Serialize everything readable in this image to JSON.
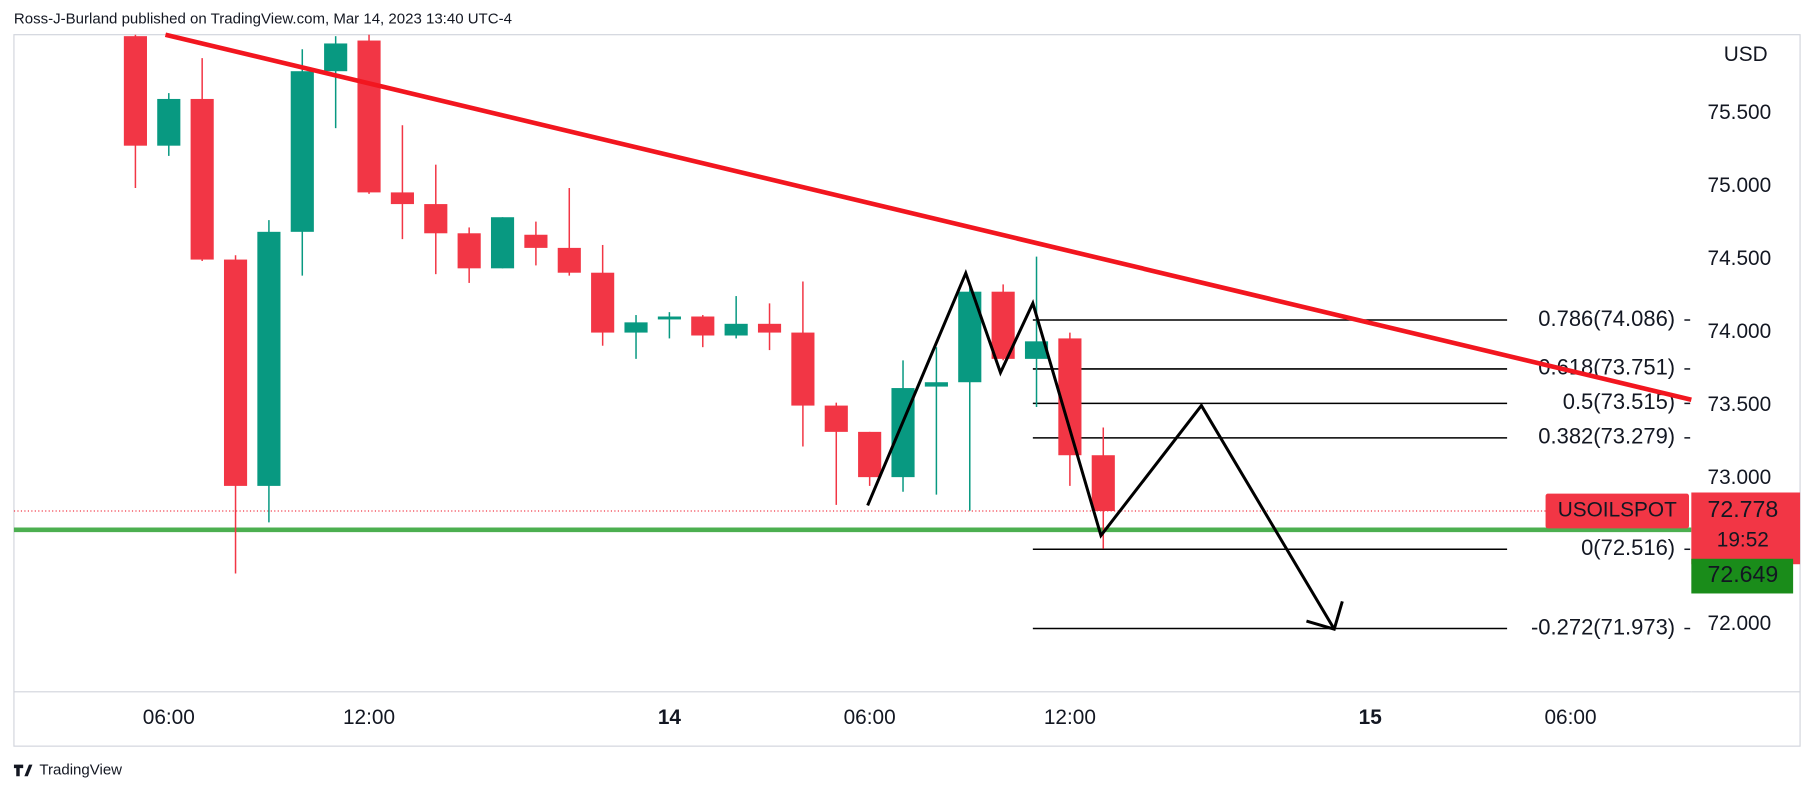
{
  "header": {
    "text": "Ross-J-Burland published on TradingView.com, Mar 14, 2023 13:40 UTC-4"
  },
  "footer": {
    "brand": "TradingView"
  },
  "chart_data": {
    "type": "candlestick",
    "symbol": "USOILSPOT",
    "currency": "USD",
    "up_color": "#089981",
    "down_color": "#f23645",
    "x": [
      0,
      1,
      2,
      3,
      4,
      5,
      6,
      7,
      8,
      9,
      10,
      11,
      12,
      13,
      14,
      15,
      16,
      17,
      18,
      19,
      20,
      21,
      22,
      23,
      24,
      25,
      26,
      27,
      28,
      29
    ],
    "open": [
      76.03,
      75.28,
      75.6,
      74.5,
      72.95,
      74.69,
      75.79,
      76.0,
      74.96,
      74.88,
      74.68,
      74.44,
      74.67,
      74.58,
      74.41,
      74.0,
      74.09,
      74.11,
      73.98,
      74.06,
      74.0,
      73.5,
      73.32,
      73.01,
      73.63,
      73.66,
      74.28,
      73.82,
      73.96,
      73.16
    ],
    "high": [
      76.05,
      75.64,
      75.88,
      74.53,
      74.77,
      75.94,
      76.03,
      76.04,
      75.42,
      75.15,
      74.72,
      74.79,
      74.76,
      74.99,
      74.6,
      74.12,
      74.14,
      74.12,
      74.25,
      74.2,
      74.35,
      73.52,
      73.32,
      73.81,
      73.9,
      74.34,
      74.33,
      74.52,
      74.0,
      73.35
    ],
    "low": [
      74.99,
      75.21,
      74.49,
      72.35,
      72.7,
      74.39,
      75.4,
      74.95,
      74.64,
      74.4,
      74.34,
      74.44,
      74.46,
      74.39,
      73.91,
      73.82,
      73.96,
      73.9,
      73.96,
      73.88,
      73.22,
      72.82,
      72.95,
      72.91,
      72.89,
      72.78,
      73.81,
      73.49,
      72.95,
      72.52
    ],
    "close": [
      75.28,
      75.6,
      74.5,
      72.95,
      74.69,
      75.79,
      75.98,
      74.96,
      74.88,
      74.68,
      74.44,
      74.79,
      74.58,
      74.41,
      74.0,
      74.07,
      74.11,
      73.98,
      74.06,
      74.0,
      73.5,
      73.32,
      73.01,
      73.62,
      73.66,
      74.28,
      73.82,
      73.94,
      73.16,
      72.778
    ],
    "xlim": [
      -3.64,
      46.62
    ],
    "ylim": [
      71.54,
      76.04
    ],
    "xticks": [
      {
        "value": 1,
        "label": "06:00"
      },
      {
        "value": 7,
        "label": "12:00"
      },
      {
        "value": 16,
        "label": "14"
      },
      {
        "value": 22,
        "label": "06:00"
      },
      {
        "value": 28,
        "label": "12:00"
      },
      {
        "value": 37,
        "label": "15"
      },
      {
        "value": 43,
        "label": "06:00"
      }
    ],
    "yticks": [
      {
        "value": 72,
        "label": "72.000"
      },
      {
        "value": 73,
        "label": "73.000"
      },
      {
        "value": 73.5,
        "label": "73.500"
      },
      {
        "value": 74,
        "label": "74.000"
      },
      {
        "value": 74.5,
        "label": "74.500"
      },
      {
        "value": 75,
        "label": "75.000"
      },
      {
        "value": 75.5,
        "label": "75.500"
      }
    ],
    "last_price": {
      "value": 72.778,
      "label": "72.778",
      "countdown": "19:52"
    },
    "support": {
      "value": 72.649,
      "label": "72.649",
      "color": "#4caf50"
    },
    "trendline": {
      "x": [
        0.9,
        46.62
      ],
      "y": [
        76.04,
        73.54
      ],
      "color": "#f2161f"
    },
    "pattern": {
      "x": [
        21.94,
        24.88,
        25.92,
        26.89,
        28.93,
        31.94,
        35.92
      ],
      "y": [
        72.816,
        74.407,
        73.726,
        74.201,
        72.61,
        73.5,
        71.969
      ],
      "color": "#000000"
    },
    "fib_x": [
      26.89,
      41.1
    ],
    "fib_levels": [
      {
        "value": 74.086,
        "label": "0.786(74.086)"
      },
      {
        "value": 73.751,
        "label": "0.618(73.751)"
      },
      {
        "value": 73.515,
        "label": "0.5(73.515)"
      },
      {
        "value": 73.279,
        "label": "0.382(73.279)"
      },
      {
        "value": 72.516,
        "label": "0(72.516)"
      },
      {
        "value": 71.973,
        "label": "-0.272(71.973)"
      }
    ]
  }
}
